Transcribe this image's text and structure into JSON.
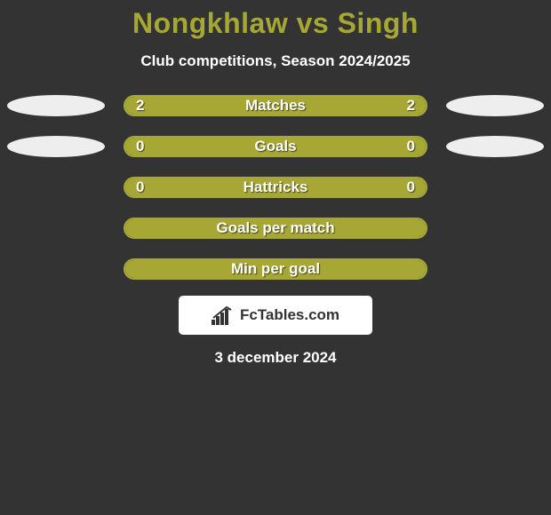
{
  "colors": {
    "page_bg": "#333333",
    "title": "#a7a736",
    "subtitle": "#ffffff",
    "bar_left_fill": "#a7a736",
    "bar_right_fill": "#a7a736",
    "bar_border": "#a7a736",
    "bar_text": "#ffffff",
    "ellipse_fill": "#eeeeee",
    "attribution_bg": "#ffffff",
    "attribution_text": "#333333",
    "date_text": "#ffffff"
  },
  "title": "Nongkhlaw vs Singh",
  "subtitle": "Club competitions, Season 2024/2025",
  "rows": [
    {
      "label": "Matches",
      "left": "2",
      "right": "2",
      "left_fill_pct": 50,
      "right_fill_pct": 50,
      "show_left_ellipse": true,
      "show_right_ellipse": true
    },
    {
      "label": "Goals",
      "left": "0",
      "right": "0",
      "left_fill_pct": 50,
      "right_fill_pct": 50,
      "show_left_ellipse": true,
      "show_right_ellipse": true
    },
    {
      "label": "Hattricks",
      "left": "0",
      "right": "0",
      "left_fill_pct": 50,
      "right_fill_pct": 50,
      "show_left_ellipse": false,
      "show_right_ellipse": false
    },
    {
      "label": "Goals per match",
      "left": "",
      "right": "",
      "left_fill_pct": 50,
      "right_fill_pct": 50,
      "show_left_ellipse": false,
      "show_right_ellipse": false
    },
    {
      "label": "Min per goal",
      "left": "",
      "right": "",
      "left_fill_pct": 50,
      "right_fill_pct": 50,
      "show_left_ellipse": false,
      "show_right_ellipse": false
    }
  ],
  "attribution": {
    "text": "FcTables.com"
  },
  "date": "3 december 2024"
}
